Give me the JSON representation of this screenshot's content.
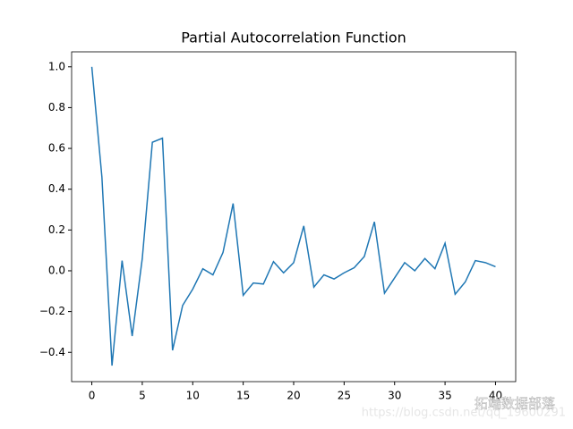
{
  "chart_data": {
    "type": "line",
    "title": "Partial Autocorrelation Function",
    "x": [
      0,
      1,
      2,
      3,
      4,
      5,
      6,
      7,
      8,
      9,
      10,
      11,
      12,
      13,
      14,
      15,
      16,
      17,
      18,
      19,
      20,
      21,
      22,
      23,
      24,
      25,
      26,
      27,
      28,
      29,
      30,
      31,
      32,
      33,
      34,
      35,
      36,
      37,
      38,
      39,
      40
    ],
    "series": [
      {
        "color": "#1f77b4",
        "values": [
          1.0,
          0.46,
          -0.465,
          0.05,
          -0.32,
          0.06,
          0.63,
          0.65,
          -0.39,
          -0.17,
          -0.09,
          0.01,
          -0.02,
          0.09,
          0.33,
          -0.12,
          -0.06,
          -0.065,
          0.045,
          -0.01,
          0.04,
          0.22,
          -0.08,
          -0.02,
          -0.04,
          -0.01,
          0.015,
          0.07,
          0.24,
          -0.11,
          -0.035,
          0.04,
          0.0,
          0.06,
          0.01,
          0.135,
          -0.115,
          -0.055,
          0.05,
          0.04,
          0.02
        ]
      }
    ],
    "xlim": [
      -2,
      42
    ],
    "xticks": [
      0,
      5,
      10,
      15,
      20,
      25,
      30,
      35,
      40
    ],
    "ylim": [
      -0.5435,
      1.0735
    ],
    "yticks": [
      {
        "value": -0.4,
        "label": "−0.4"
      },
      {
        "value": -0.2,
        "label": "−0.2"
      },
      {
        "value": 0,
        "label": "0.0"
      },
      {
        "value": 0.2,
        "label": "0.2"
      },
      {
        "value": 0.4,
        "label": "0.4"
      },
      {
        "value": 0.6,
        "label": "0.6"
      },
      {
        "value": 0.8,
        "label": "0.8"
      },
      {
        "value": 1.0,
        "label": "1.0"
      }
    ],
    "grid": false,
    "watermark": {
      "url": "https://blog.csdn.net/qq_19600291",
      "brand": "拓端数据部落"
    }
  }
}
